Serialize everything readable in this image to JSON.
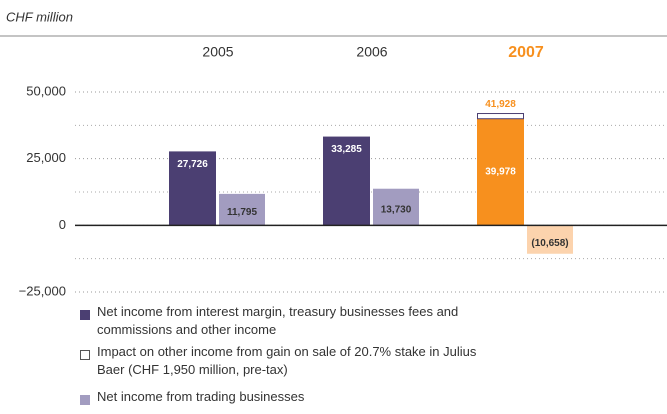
{
  "chart_data": {
    "type": "bar",
    "title": "CHF million",
    "categories": [
      "2005",
      "2006",
      "2007"
    ],
    "highlight_category": 2,
    "highlight_color": "#f7901e",
    "series": [
      {
        "name": "Net income from interest margin, treasury businesses fees and commissions and other income",
        "color": "#4b3f72",
        "highlight_color": "#f7901e",
        "values": [
          27726,
          33285,
          39978
        ],
        "value_labels": [
          "27,726",
          "33,285",
          "39,978"
        ]
      },
      {
        "name": "Impact on other income from gain on sale of 20.7% stake in Julius Baer (CHF 1,950 million, pre-tax)",
        "color": "#ffffff",
        "highlight_color": "#ffffff",
        "values": [
          null,
          null,
          1950
        ]
      },
      {
        "name": "Net income from trading businesses",
        "color": "#a29cc0",
        "highlight_color": "#fcd3ad",
        "values": [
          11795,
          13730,
          -10658
        ],
        "value_labels": [
          "11,795",
          "13,730",
          "(10,658)"
        ]
      }
    ],
    "annotations": [
      {
        "text": "41,928",
        "value": 41928,
        "category": 2
      }
    ],
    "ylim": [
      -25000,
      50000
    ],
    "yticks": [
      {
        "value": -25000,
        "label": "−25,000"
      },
      0,
      {
        "value": 25000,
        "label": "25,000"
      },
      {
        "value": 50000,
        "label": "50,000"
      }
    ],
    "grid": true
  }
}
